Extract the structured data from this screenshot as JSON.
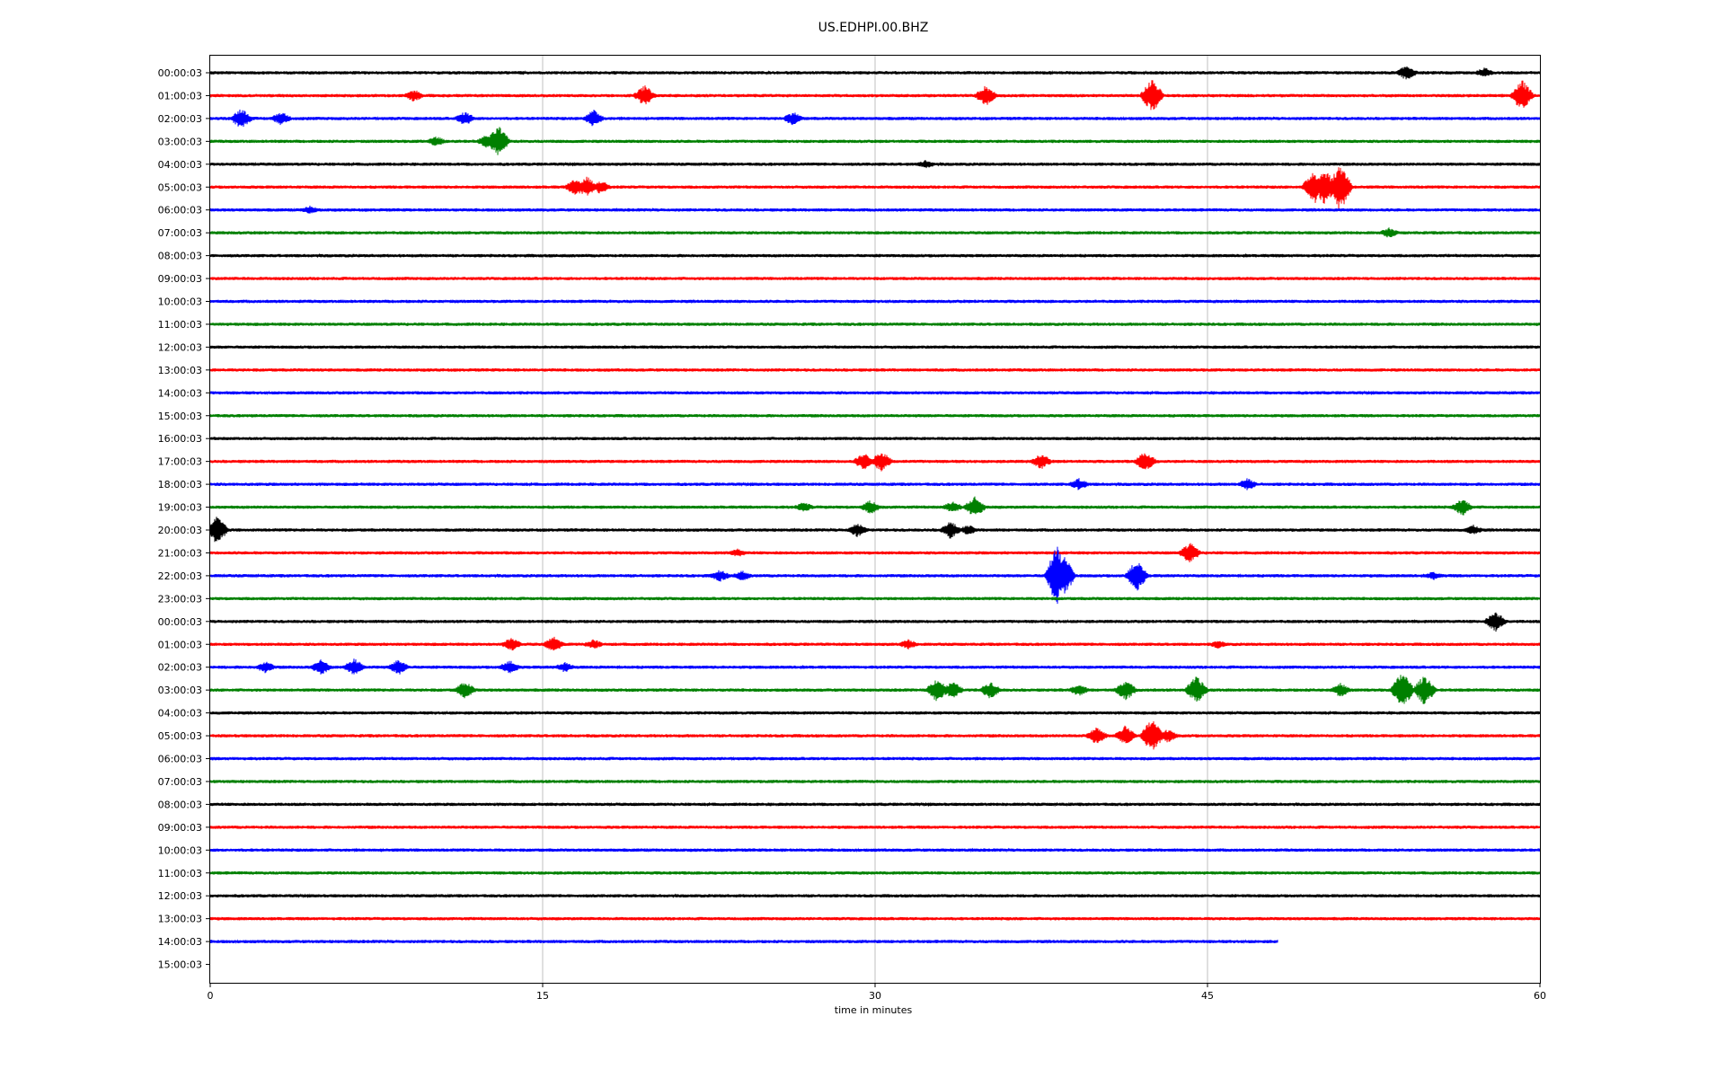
{
  "chart_data": {
    "type": "line",
    "title": "US.EDHPI.00.BHZ",
    "xlabel": "time in minutes",
    "ylabel": "",
    "xlim": [
      0,
      60
    ],
    "xticks": [
      {
        "value": 0,
        "label": "0"
      },
      {
        "value": 15,
        "label": "15"
      },
      {
        "value": 30,
        "label": "30"
      },
      {
        "value": 45,
        "label": "45"
      },
      {
        "value": 60,
        "label": "60"
      }
    ],
    "grid": "vertical",
    "trace_colors": [
      "#000000",
      "#ff0000",
      "#0000ff",
      "#008000"
    ],
    "rows": [
      {
        "label": "00:00:03",
        "end_minute": 60,
        "events": [
          [
            54.0,
            9
          ],
          [
            57.5,
            6
          ]
        ]
      },
      {
        "label": "01:00:03",
        "end_minute": 60,
        "events": [
          [
            9.2,
            7
          ],
          [
            19.6,
            12
          ],
          [
            35.0,
            12
          ],
          [
            42.5,
            20
          ],
          [
            59.2,
            18
          ]
        ]
      },
      {
        "label": "02:00:03",
        "end_minute": 60,
        "events": [
          [
            1.4,
            12
          ],
          [
            3.2,
            8
          ],
          [
            11.5,
            8
          ],
          [
            17.3,
            10
          ],
          [
            26.3,
            8
          ]
        ]
      },
      {
        "label": "03:00:03",
        "end_minute": 60,
        "events": [
          [
            10.2,
            6
          ],
          [
            12.5,
            8
          ],
          [
            13.0,
            18
          ]
        ]
      },
      {
        "label": "04:00:03",
        "end_minute": 60,
        "events": [
          [
            32.3,
            5
          ]
        ]
      },
      {
        "label": "05:00:03",
        "end_minute": 60,
        "events": [
          [
            16.5,
            10
          ],
          [
            17.0,
            12
          ],
          [
            17.6,
            8
          ],
          [
            49.8,
            20
          ],
          [
            50.3,
            22
          ],
          [
            51.0,
            28
          ]
        ]
      },
      {
        "label": "06:00:03",
        "end_minute": 60,
        "events": [
          [
            4.5,
            5
          ]
        ]
      },
      {
        "label": "07:00:03",
        "end_minute": 60,
        "events": [
          [
            53.2,
            6
          ]
        ]
      },
      {
        "label": "08:00:03",
        "end_minute": 60,
        "events": []
      },
      {
        "label": "09:00:03",
        "end_minute": 60,
        "events": []
      },
      {
        "label": "10:00:03",
        "end_minute": 60,
        "events": []
      },
      {
        "label": "11:00:03",
        "end_minute": 60,
        "events": []
      },
      {
        "label": "12:00:03",
        "end_minute": 60,
        "events": []
      },
      {
        "label": "13:00:03",
        "end_minute": 60,
        "events": []
      },
      {
        "label": "14:00:03",
        "end_minute": 60,
        "events": []
      },
      {
        "label": "15:00:03",
        "end_minute": 60,
        "events": []
      },
      {
        "label": "16:00:03",
        "end_minute": 60,
        "events": []
      },
      {
        "label": "17:00:03",
        "end_minute": 60,
        "events": [
          [
            29.5,
            10
          ],
          [
            30.3,
            12
          ],
          [
            37.5,
            9
          ],
          [
            42.2,
            12
          ]
        ]
      },
      {
        "label": "18:00:03",
        "end_minute": 60,
        "events": [
          [
            39.2,
            7
          ],
          [
            46.8,
            7
          ]
        ]
      },
      {
        "label": "19:00:03",
        "end_minute": 60,
        "events": [
          [
            26.8,
            6
          ],
          [
            29.8,
            8
          ],
          [
            33.5,
            7
          ],
          [
            34.5,
            12
          ],
          [
            56.5,
            10
          ]
        ]
      },
      {
        "label": "20:00:03",
        "end_minute": 60,
        "events": [
          [
            0.3,
            16
          ],
          [
            29.2,
            8
          ],
          [
            33.4,
            10
          ],
          [
            34.2,
            6
          ],
          [
            57.0,
            6
          ]
        ]
      },
      {
        "label": "21:00:03",
        "end_minute": 60,
        "events": [
          [
            44.2,
            12
          ],
          [
            23.8,
            5
          ]
        ]
      },
      {
        "label": "22:00:03",
        "end_minute": 60,
        "events": [
          [
            23.0,
            7
          ],
          [
            24.0,
            6
          ],
          [
            38.2,
            34
          ],
          [
            38.5,
            25
          ],
          [
            41.8,
            18
          ],
          [
            55.2,
            5
          ]
        ]
      },
      {
        "label": "23:00:03",
        "end_minute": 60,
        "events": []
      },
      {
        "label": "00:00:03",
        "end_minute": 60,
        "events": [
          [
            58.0,
            12
          ]
        ]
      },
      {
        "label": "01:00:03",
        "end_minute": 60,
        "events": [
          [
            13.6,
            8
          ],
          [
            15.5,
            9
          ],
          [
            17.3,
            6
          ],
          [
            31.5,
            6
          ],
          [
            45.5,
            5
          ]
        ]
      },
      {
        "label": "02:00:03",
        "end_minute": 60,
        "events": [
          [
            2.5,
            7
          ],
          [
            5.0,
            9
          ],
          [
            6.5,
            10
          ],
          [
            8.5,
            9
          ],
          [
            13.5,
            8
          ],
          [
            16.0,
            6
          ]
        ]
      },
      {
        "label": "03:00:03",
        "end_minute": 60,
        "events": [
          [
            11.5,
            10
          ],
          [
            32.8,
            14
          ],
          [
            33.5,
            10
          ],
          [
            35.2,
            10
          ],
          [
            39.2,
            7
          ],
          [
            41.3,
            12
          ],
          [
            44.5,
            16
          ],
          [
            51.0,
            8
          ],
          [
            53.8,
            22
          ],
          [
            54.8,
            18
          ]
        ]
      },
      {
        "label": "04:00:03",
        "end_minute": 60,
        "events": []
      },
      {
        "label": "05:00:03",
        "end_minute": 60,
        "events": [
          [
            40.0,
            10
          ],
          [
            41.3,
            12
          ],
          [
            42.5,
            20
          ],
          [
            43.2,
            8
          ]
        ]
      },
      {
        "label": "06:00:03",
        "end_minute": 60,
        "events": []
      },
      {
        "label": "07:00:03",
        "end_minute": 60,
        "events": []
      },
      {
        "label": "08:00:03",
        "end_minute": 60,
        "events": []
      },
      {
        "label": "09:00:03",
        "end_minute": 60,
        "events": []
      },
      {
        "label": "10:00:03",
        "end_minute": 60,
        "events": []
      },
      {
        "label": "11:00:03",
        "end_minute": 60,
        "events": []
      },
      {
        "label": "12:00:03",
        "end_minute": 60,
        "events": []
      },
      {
        "label": "13:00:03",
        "end_minute": 60,
        "events": []
      },
      {
        "label": "14:00:03",
        "end_minute": 48.2,
        "events": []
      },
      {
        "label": "15:00:03",
        "end_minute": 0,
        "events": []
      }
    ]
  }
}
